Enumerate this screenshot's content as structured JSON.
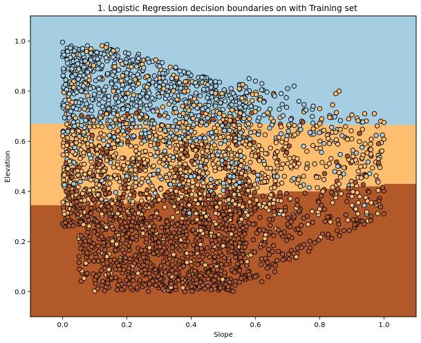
{
  "chart_data": {
    "type": "scatter",
    "title": "1. Logistic Regression decision boundaries on with Training set",
    "xlabel": "Slope",
    "ylabel": "Elevation",
    "xlim": [
      -0.1,
      1.1
    ],
    "ylim": [
      -0.1,
      1.1
    ],
    "xticks": [
      0.0,
      0.2,
      0.4,
      0.6,
      0.8,
      1.0
    ],
    "yticks": [
      0.0,
      0.2,
      0.4,
      0.6,
      0.8,
      1.0
    ],
    "xtick_labels": [
      "0.0",
      "0.2",
      "0.4",
      "0.6",
      "0.8",
      "1.0"
    ],
    "ytick_labels": [
      "0.0",
      "0.2",
      "0.4",
      "0.6",
      "0.8",
      "1.0"
    ],
    "grid": false,
    "legend": null,
    "classes": [
      {
        "color": "#a6cee3",
        "region": "upper"
      },
      {
        "color": "#fdbf6f",
        "region": "middle"
      },
      {
        "color": "#b15928",
        "region": "lower"
      }
    ],
    "decision_boundaries": {
      "upper_boundary": {
        "x": [
          -0.1,
          0.0,
          0.1,
          0.2,
          0.3,
          0.4,
          0.5,
          0.6,
          0.7,
          0.8,
          0.9,
          1.0,
          1.1
        ],
        "y": [
          0.67,
          0.67,
          0.67,
          0.67,
          0.67,
          0.67,
          0.67,
          0.67,
          0.67,
          0.665,
          0.665,
          0.665,
          0.665
        ]
      },
      "lower_boundary": {
        "x": [
          -0.1,
          0.0,
          0.1,
          0.2,
          0.3,
          0.4,
          0.5,
          0.6,
          0.7,
          0.75,
          0.8,
          0.85,
          0.9,
          1.0,
          1.1
        ],
        "y": [
          0.345,
          0.345,
          0.35,
          0.36,
          0.37,
          0.38,
          0.39,
          0.39,
          0.4,
          0.4,
          0.41,
          0.41,
          0.42,
          0.43,
          0.43
        ]
      }
    },
    "cluster_bounds": {
      "main_x": [
        0.0,
        0.55
      ],
      "main_y": [
        0.0,
        0.99
      ],
      "tail_x": [
        0.55,
        1.0
      ],
      "tail_y": [
        0.03,
        0.85
      ]
    },
    "sample_points": [
      {
        "x": 0.0,
        "y": 0.995,
        "cls": 0
      },
      {
        "x": 0.97,
        "y": 0.71,
        "cls": 1
      },
      {
        "x": 0.99,
        "y": 0.68,
        "cls": 1
      },
      {
        "x": 1.0,
        "y": 0.675,
        "cls": 1
      },
      {
        "x": 0.94,
        "y": 0.71,
        "cls": 1
      },
      {
        "x": 0.9,
        "y": 0.705,
        "cls": 1
      },
      {
        "x": 0.92,
        "y": 0.48,
        "cls": 1
      },
      {
        "x": 0.96,
        "y": 0.355,
        "cls": 1
      },
      {
        "x": 0.92,
        "y": 0.355,
        "cls": 1
      },
      {
        "x": 0.9,
        "y": 0.38,
        "cls": 1
      },
      {
        "x": 0.86,
        "y": 0.8,
        "cls": 1
      },
      {
        "x": 0.85,
        "y": 0.79,
        "cls": 1
      },
      {
        "x": 0.84,
        "y": 0.745,
        "cls": 1
      },
      {
        "x": 0.86,
        "y": 0.475,
        "cls": 1
      },
      {
        "x": 0.86,
        "y": 0.43,
        "cls": 1
      },
      {
        "x": 0.84,
        "y": 0.355,
        "cls": 1
      },
      {
        "x": 0.8,
        "y": 0.73,
        "cls": 1
      },
      {
        "x": 0.8,
        "y": 0.67,
        "cls": 1
      },
      {
        "x": 0.8,
        "y": 0.33,
        "cls": 1
      },
      {
        "x": 0.81,
        "y": 0.4,
        "cls": 1
      },
      {
        "x": 0.78,
        "y": 0.74,
        "cls": 0
      },
      {
        "x": 0.77,
        "y": 0.635,
        "cls": 0
      },
      {
        "x": 0.76,
        "y": 0.56,
        "cls": 1
      },
      {
        "x": 0.75,
        "y": 0.58,
        "cls": 0
      },
      {
        "x": 0.74,
        "y": 0.42,
        "cls": 1
      },
      {
        "x": 0.72,
        "y": 0.82,
        "cls": 0
      },
      {
        "x": 0.7,
        "y": 0.81,
        "cls": 0
      },
      {
        "x": 0.68,
        "y": 0.79,
        "cls": 0
      },
      {
        "x": 0.7,
        "y": 0.27,
        "cls": 2
      },
      {
        "x": 0.72,
        "y": 0.3,
        "cls": 2
      },
      {
        "x": 0.71,
        "y": 0.5,
        "cls": 1
      },
      {
        "x": 0.69,
        "y": 0.46,
        "cls": 1
      },
      {
        "x": 0.66,
        "y": 0.08,
        "cls": 2
      },
      {
        "x": 0.64,
        "y": 0.06,
        "cls": 2
      },
      {
        "x": 0.62,
        "y": 0.04,
        "cls": 2
      },
      {
        "x": 0.6,
        "y": 0.06,
        "cls": 2
      },
      {
        "x": 0.58,
        "y": 0.85,
        "cls": 0
      },
      {
        "x": 0.6,
        "y": 0.84,
        "cls": 0
      },
      {
        "x": 0.62,
        "y": 0.83,
        "cls": 0
      }
    ]
  }
}
